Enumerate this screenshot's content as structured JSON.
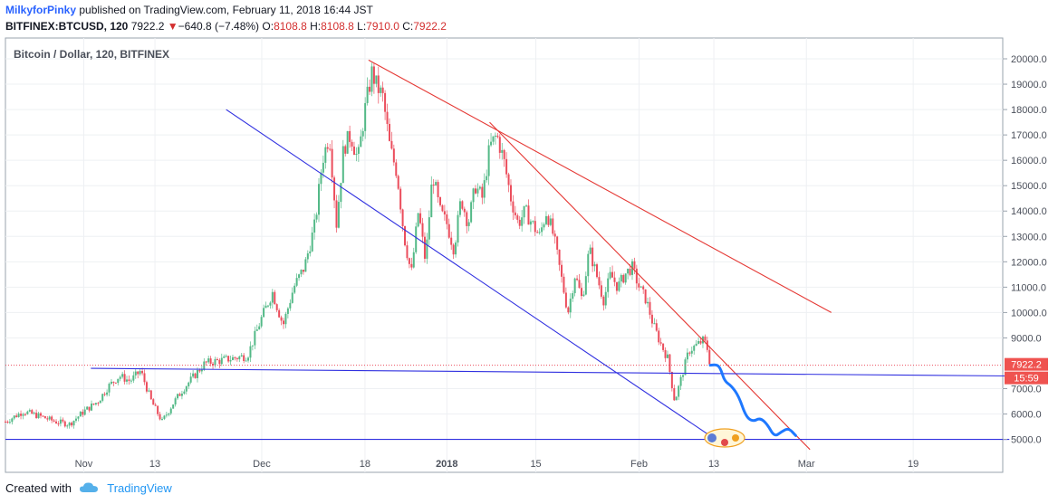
{
  "header": {
    "author": "MilkyforPinky",
    "published_text": "published on TradingView.com, February 11, 2018 16:44 JST",
    "symbol": "BITFINEX:BTCUSD, 120",
    "last_price": "7922.2",
    "change": "−640.8 (−7.48%)",
    "open_label": "O:",
    "open": "8108.8",
    "high_label": "H:",
    "high": "8108.8",
    "low_label": "L:",
    "low": "7910.0",
    "close_label": "C:",
    "close": "7922.2"
  },
  "footer": {
    "created_with": "Created with",
    "brand": "TradingView"
  },
  "colors": {
    "up": "#53b987",
    "down": "#eb4d5c",
    "red_line": "#e53935",
    "blue_line": "#3030e0",
    "projection": "#1e78ff"
  },
  "chart_data": {
    "type": "candlestick",
    "title": "Bitcoin / Dollar, 120, BITFINEX",
    "x_tick_labels": [
      "Nov",
      "13",
      "Dec",
      "18",
      "2018",
      "15",
      "Feb",
      "13",
      "Mar",
      "19"
    ],
    "y_tick_labels": [
      "20000.0",
      "19000.0",
      "18000.0",
      "17000.0",
      "16000.0",
      "15000.0",
      "14000.0",
      "13000.0",
      "12000.0",
      "11000.0",
      "10000.0",
      "9000.0",
      "7000.0",
      "6000.0",
      "5000.0"
    ],
    "ylim": [
      4300,
      20800
    ],
    "price_label": "7922.2",
    "countdown_label": "15:59",
    "price_path": [
      {
        "t": 0,
        "p": 5700
      },
      {
        "t": 5,
        "p": 6100
      },
      {
        "t": 10,
        "p": 5900
      },
      {
        "t": 14,
        "p": 5700
      },
      {
        "t": 18,
        "p": 5600
      },
      {
        "t": 22,
        "p": 6100
      },
      {
        "t": 26,
        "p": 6500
      },
      {
        "t": 29,
        "p": 7100
      },
      {
        "t": 32,
        "p": 7500
      },
      {
        "t": 35,
        "p": 7300
      },
      {
        "t": 38,
        "p": 7700
      },
      {
        "t": 41,
        "p": 6500
      },
      {
        "t": 44,
        "p": 5700
      },
      {
        "t": 47,
        "p": 6400
      },
      {
        "t": 50,
        "p": 7000
      },
      {
        "t": 53,
        "p": 7500
      },
      {
        "t": 56,
        "p": 8000
      },
      {
        "t": 60,
        "p": 8100
      },
      {
        "t": 64,
        "p": 8200
      },
      {
        "t": 68,
        "p": 8300
      },
      {
        "t": 72,
        "p": 9800
      },
      {
        "t": 75,
        "p": 10800
      },
      {
        "t": 78,
        "p": 9500
      },
      {
        "t": 81,
        "p": 11000
      },
      {
        "t": 84,
        "p": 11800
      },
      {
        "t": 87,
        "p": 13500
      },
      {
        "t": 89,
        "p": 16000
      },
      {
        "t": 91,
        "p": 17000
      },
      {
        "t": 93,
        "p": 13500
      },
      {
        "t": 95,
        "p": 16500
      },
      {
        "t": 97,
        "p": 17000
      },
      {
        "t": 99,
        "p": 16000
      },
      {
        "t": 101,
        "p": 18000
      },
      {
        "t": 103,
        "p": 19500
      },
      {
        "t": 104,
        "p": 19000
      },
      {
        "t": 106,
        "p": 18500
      },
      {
        "t": 108,
        "p": 16500
      },
      {
        "t": 110,
        "p": 15500
      },
      {
        "t": 112,
        "p": 13000
      },
      {
        "t": 114,
        "p": 11500
      },
      {
        "t": 116,
        "p": 14000
      },
      {
        "t": 118,
        "p": 12000
      },
      {
        "t": 120,
        "p": 15500
      },
      {
        "t": 122,
        "p": 14000
      },
      {
        "t": 124,
        "p": 13500
      },
      {
        "t": 126,
        "p": 12500
      },
      {
        "t": 128,
        "p": 14500
      },
      {
        "t": 130,
        "p": 13500
      },
      {
        "t": 132,
        "p": 15000
      },
      {
        "t": 134,
        "p": 14500
      },
      {
        "t": 136,
        "p": 16500
      },
      {
        "t": 138,
        "p": 17000
      },
      {
        "t": 140,
        "p": 16000
      },
      {
        "t": 142,
        "p": 14500
      },
      {
        "t": 144,
        "p": 13500
      },
      {
        "t": 146,
        "p": 14000
      },
      {
        "t": 148,
        "p": 13500
      },
      {
        "t": 150,
        "p": 13000
      },
      {
        "t": 152,
        "p": 14000
      },
      {
        "t": 154,
        "p": 13000
      },
      {
        "t": 156,
        "p": 11500
      },
      {
        "t": 158,
        "p": 10000
      },
      {
        "t": 160,
        "p": 11500
      },
      {
        "t": 162,
        "p": 10500
      },
      {
        "t": 164,
        "p": 12500
      },
      {
        "t": 166,
        "p": 11500
      },
      {
        "t": 168,
        "p": 10500
      },
      {
        "t": 170,
        "p": 11500
      },
      {
        "t": 172,
        "p": 11000
      },
      {
        "t": 174,
        "p": 11500
      },
      {
        "t": 176,
        "p": 11800
      },
      {
        "t": 178,
        "p": 11000
      },
      {
        "t": 180,
        "p": 10500
      },
      {
        "t": 182,
        "p": 9500
      },
      {
        "t": 184,
        "p": 8800
      },
      {
        "t": 186,
        "p": 8200
      },
      {
        "t": 188,
        "p": 6500
      },
      {
        "t": 190,
        "p": 7500
      },
      {
        "t": 192,
        "p": 8500
      },
      {
        "t": 194,
        "p": 8700
      },
      {
        "t": 196,
        "p": 8900
      },
      {
        "t": 197,
        "p": 8700
      },
      {
        "t": 198,
        "p": 7922
      }
    ],
    "projection_path": [
      {
        "t": 198,
        "p": 7922
      },
      {
        "t": 200,
        "p": 7950
      },
      {
        "t": 201,
        "p": 7750
      },
      {
        "t": 202,
        "p": 7300
      },
      {
        "t": 204,
        "p": 7100
      },
      {
        "t": 206,
        "p": 6700
      },
      {
        "t": 208,
        "p": 5900
      },
      {
        "t": 210,
        "p": 5700
      },
      {
        "t": 212,
        "p": 5850
      },
      {
        "t": 214,
        "p": 5600
      },
      {
        "t": 216,
        "p": 5100
      },
      {
        "t": 218,
        "p": 5300
      },
      {
        "t": 220,
        "p": 5450
      },
      {
        "t": 222,
        "p": 5150
      }
    ],
    "trendlines": [
      {
        "color": "red",
        "from": {
          "t": 102,
          "p": 19950
        },
        "to": {
          "t": 232,
          "p": 10000
        }
      },
      {
        "color": "red",
        "from": {
          "t": 136,
          "p": 17500
        },
        "to": {
          "t": 226,
          "p": 4600
        }
      },
      {
        "color": "blue",
        "from": {
          "t": 62,
          "p": 18000
        },
        "to": {
          "t": 200,
          "p": 4950
        }
      },
      {
        "color": "blue",
        "from": {
          "t": 24,
          "p": 7800
        },
        "to": {
          "t": 282,
          "p": 7500
        }
      },
      {
        "color": "blue",
        "from": {
          "t": 0,
          "p": 5000
        },
        "to": {
          "t": 282,
          "p": 5000
        }
      }
    ]
  }
}
